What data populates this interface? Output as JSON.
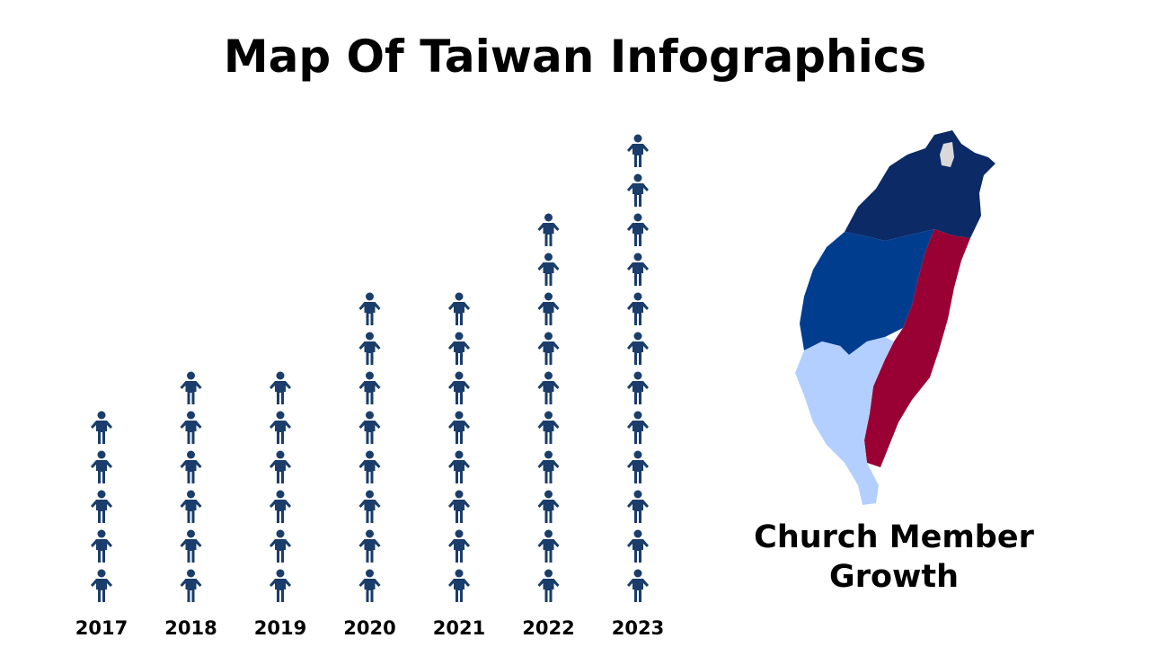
{
  "chart_data": {
    "type": "pictograph",
    "title": "Map Of Taiwan Infographics",
    "categories": [
      "2017",
      "2018",
      "2019",
      "2020",
      "2021",
      "2022",
      "2023"
    ],
    "values": [
      5,
      6,
      6,
      8,
      8,
      10,
      12
    ],
    "color": "#1a3d6b",
    "annotation": "Church Member Growth"
  }
}
